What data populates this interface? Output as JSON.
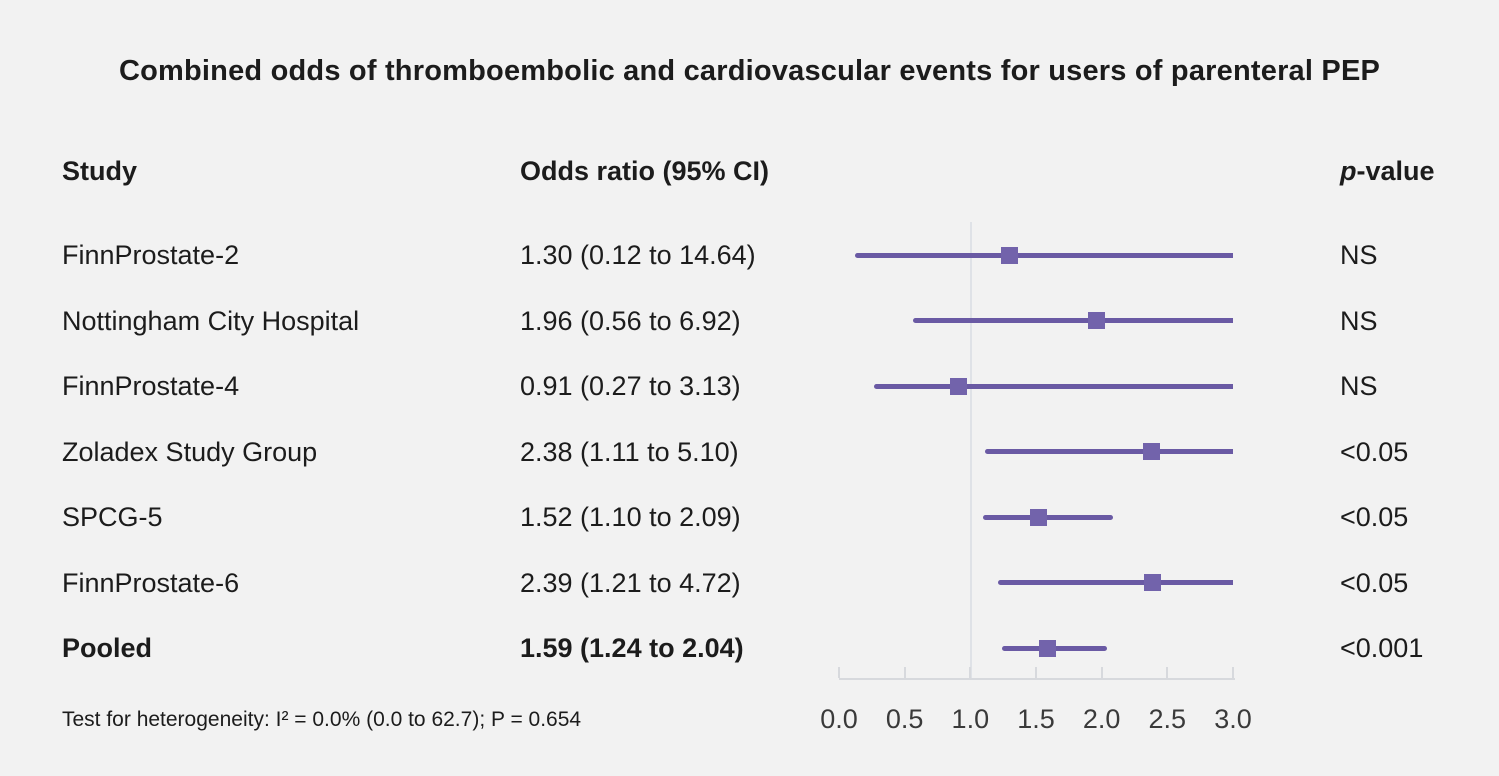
{
  "chart_data": {
    "type": "forest",
    "title": "Combined odds of thromboembolic and cardiovascular events for users of parenteral PEP",
    "columns": {
      "study": "Study",
      "odds_ratio": "Odds ratio (95% CI)",
      "p_italic": "p",
      "p_suffix": "-value"
    },
    "rows": [
      {
        "study": "FinnProstate-2",
        "or_ci": "1.30 (0.12 to 14.64)",
        "est": 1.3,
        "lo": 0.12,
        "hi": 14.64,
        "p": "NS",
        "bold": false
      },
      {
        "study": "Nottingham City Hospital",
        "or_ci": "1.96 (0.56 to 6.92)",
        "est": 1.96,
        "lo": 0.56,
        "hi": 6.92,
        "p": "NS",
        "bold": false
      },
      {
        "study": "FinnProstate-4",
        "or_ci": "0.91 (0.27 to 3.13)",
        "est": 0.91,
        "lo": 0.27,
        "hi": 3.13,
        "p": "NS",
        "bold": false
      },
      {
        "study": "Zoladex Study Group",
        "or_ci": "2.38 (1.11 to 5.10)",
        "est": 2.38,
        "lo": 1.11,
        "hi": 5.1,
        "p": "<0.05",
        "bold": false
      },
      {
        "study": "SPCG-5",
        "or_ci": "1.52 (1.10 to 2.09)",
        "est": 1.52,
        "lo": 1.1,
        "hi": 2.09,
        "p": "<0.05",
        "bold": false
      },
      {
        "study": "FinnProstate-6",
        "or_ci": "2.39 (1.21 to 4.72)",
        "est": 2.39,
        "lo": 1.21,
        "hi": 4.72,
        "p": "<0.05",
        "bold": false
      },
      {
        "study": "Pooled",
        "or_ci": "1.59 (1.24 to 2.04)",
        "est": 1.59,
        "lo": 1.24,
        "hi": 2.04,
        "p": "<0.001",
        "bold": true
      }
    ],
    "x_axis": {
      "range": [
        0.0,
        3.0
      ],
      "ticks": [
        0.0,
        0.5,
        1.0,
        1.5,
        2.0,
        2.5,
        3.0
      ],
      "tick_labels": [
        "0.0",
        "0.5",
        "1.0",
        "1.5",
        "2.0",
        "2.5",
        "3.0"
      ],
      "reference_line": 1.0,
      "clip_max": 3.0,
      "grid": false
    },
    "footnote": "Test for heterogeneity: I² = 0.0% (0.0 to 62.7); P = 0.654",
    "colors": {
      "background": "#f2f2f2",
      "text": "#1c1c1c",
      "ci_line": "#6a5aa4",
      "marker": "#7263ab",
      "reference_line": "#dfe2e7",
      "axis": "#d7d9dd"
    }
  }
}
